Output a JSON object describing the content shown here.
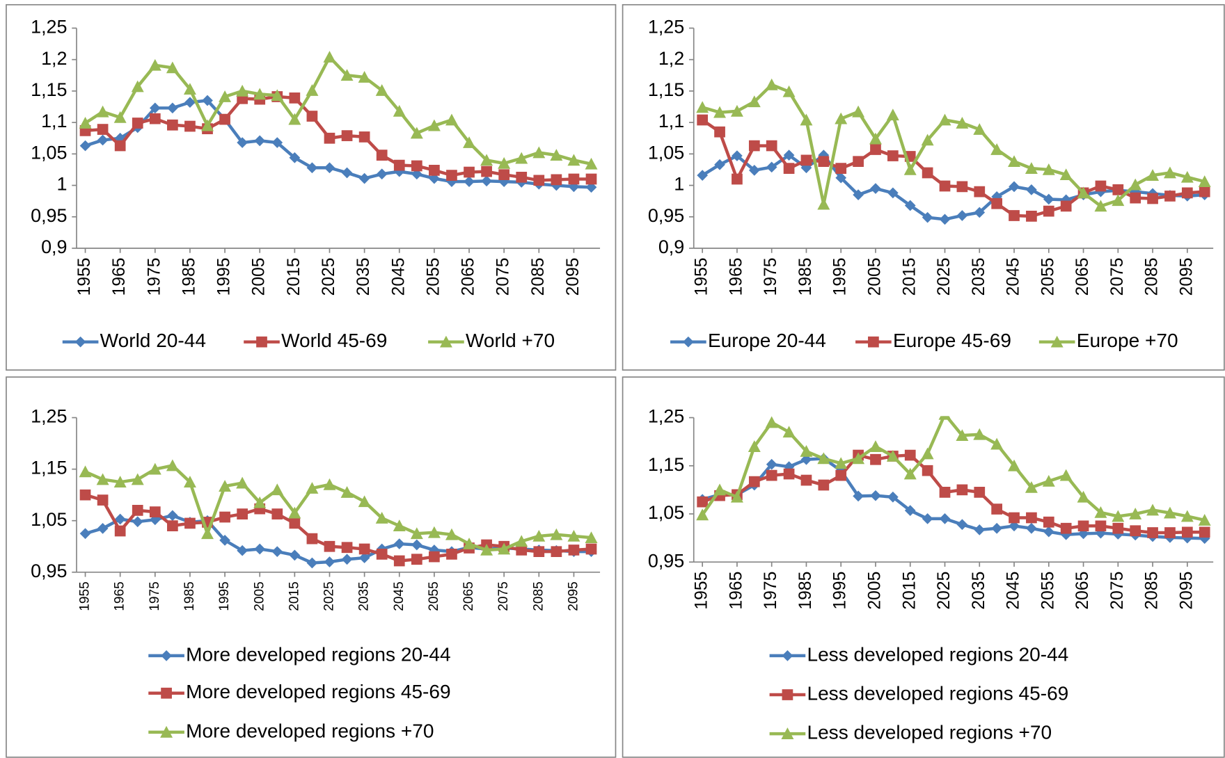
{
  "chart_data": [
    {
      "type": "line",
      "x": [
        1955,
        1960,
        1965,
        1970,
        1975,
        1980,
        1985,
        1990,
        1995,
        2000,
        2005,
        2010,
        2015,
        2020,
        2025,
        2030,
        2035,
        2040,
        2045,
        2050,
        2055,
        2060,
        2065,
        2070,
        2075,
        2080,
        2085,
        2090,
        2095,
        2100
      ],
      "xlim": [
        1952.5,
        2102.5
      ],
      "xticks": [
        1955,
        1965,
        1975,
        1985,
        1995,
        2005,
        2015,
        2025,
        2035,
        2045,
        2055,
        2065,
        2075,
        2085,
        2095
      ],
      "ylim": [
        0.9,
        1.25
      ],
      "yticks": [
        {
          "value": 0.9,
          "label": "0,9"
        },
        {
          "value": 0.95,
          "label": "0,95"
        },
        1,
        {
          "value": 1.05,
          "label": "1,05"
        },
        {
          "value": 1.1,
          "label": "1,1"
        },
        {
          "value": 1.15,
          "label": "1,15"
        },
        {
          "value": 1.2,
          "label": "1,2"
        },
        {
          "value": 1.25,
          "label": "1,25"
        }
      ],
      "grid": false,
      "legend": "bottom",
      "series": [
        {
          "name": "World 20-44",
          "color": "#4a7ebb",
          "marker": "diamond",
          "values": [
            1.063,
            1.072,
            1.075,
            1.092,
            1.123,
            1.123,
            1.132,
            1.135,
            1.105,
            1.068,
            1.071,
            1.068,
            1.044,
            1.028,
            1.028,
            1.02,
            1.011,
            1.018,
            1.022,
            1.018,
            1.011,
            1.006,
            1.006,
            1.007,
            1.006,
            1.005,
            1.002,
            1.0,
            0.998,
            0.997
          ]
        },
        {
          "name": "World 45-69",
          "color": "#be4b48",
          "marker": "square",
          "values": [
            1.087,
            1.089,
            1.063,
            1.099,
            1.106,
            1.096,
            1.094,
            1.09,
            1.105,
            1.138,
            1.137,
            1.141,
            1.139,
            1.11,
            1.075,
            1.079,
            1.077,
            1.048,
            1.032,
            1.031,
            1.024,
            1.016,
            1.021,
            1.022,
            1.017,
            1.013,
            1.008,
            1.009,
            1.01,
            1.01
          ]
        },
        {
          "name": "World +70",
          "color": "#98b954",
          "marker": "triangle",
          "values": [
            1.099,
            1.117,
            1.108,
            1.157,
            1.191,
            1.187,
            1.153,
            1.095,
            1.141,
            1.15,
            1.145,
            1.143,
            1.105,
            1.151,
            1.204,
            1.175,
            1.172,
            1.151,
            1.118,
            1.083,
            1.095,
            1.104,
            1.068,
            1.04,
            1.035,
            1.043,
            1.052,
            1.048,
            1.04,
            1.034
          ]
        }
      ]
    },
    {
      "type": "line",
      "x": [
        1955,
        1960,
        1965,
        1970,
        1975,
        1980,
        1985,
        1990,
        1995,
        2000,
        2005,
        2010,
        2015,
        2020,
        2025,
        2030,
        2035,
        2040,
        2045,
        2050,
        2055,
        2060,
        2065,
        2070,
        2075,
        2080,
        2085,
        2090,
        2095,
        2100
      ],
      "xlim": [
        1952.5,
        2102.5
      ],
      "xticks": [
        1955,
        1965,
        1975,
        1985,
        1995,
        2005,
        2015,
        2025,
        2035,
        2045,
        2055,
        2065,
        2075,
        2085,
        2095
      ],
      "ylim": [
        0.9,
        1.25
      ],
      "yticks": [
        {
          "value": 0.9,
          "label": "0,9"
        },
        {
          "value": 0.95,
          "label": "0,95"
        },
        1,
        {
          "value": 1.05,
          "label": "1,05"
        },
        {
          "value": 1.1,
          "label": "1,1"
        },
        {
          "value": 1.15,
          "label": "1,15"
        },
        {
          "value": 1.2,
          "label": "1,2"
        },
        {
          "value": 1.25,
          "label": "1,25"
        }
      ],
      "grid": false,
      "legend": "bottom",
      "series": [
        {
          "name": "Europe 20-44",
          "color": "#4a7ebb",
          "marker": "diamond",
          "values": [
            1.016,
            1.033,
            1.047,
            1.024,
            1.029,
            1.048,
            1.028,
            1.048,
            1.012,
            0.985,
            0.995,
            0.988,
            0.968,
            0.949,
            0.946,
            0.952,
            0.957,
            0.982,
            0.998,
            0.993,
            0.978,
            0.977,
            0.985,
            0.99,
            0.992,
            0.99,
            0.987,
            0.984,
            0.983,
            0.985
          ]
        },
        {
          "name": "Europe 45-69",
          "color": "#be4b48",
          "marker": "square",
          "values": [
            1.104,
            1.085,
            1.01,
            1.063,
            1.063,
            1.027,
            1.04,
            1.038,
            1.027,
            1.038,
            1.057,
            1.047,
            1.046,
            1.02,
            0.999,
            0.998,
            0.99,
            0.971,
            0.952,
            0.951,
            0.959,
            0.967,
            0.988,
            0.999,
            0.993,
            0.98,
            0.979,
            0.983,
            0.988,
            0.99
          ]
        },
        {
          "name": "Europe +70",
          "color": "#98b954",
          "marker": "triangle",
          "values": [
            1.124,
            1.116,
            1.118,
            1.133,
            1.16,
            1.149,
            1.104,
            0.97,
            1.106,
            1.117,
            1.074,
            1.112,
            1.025,
            1.072,
            1.104,
            1.099,
            1.089,
            1.057,
            1.038,
            1.027,
            1.025,
            1.017,
            0.988,
            0.967,
            0.976,
            1.001,
            1.016,
            1.02,
            1.013,
            1.006
          ]
        }
      ]
    },
    {
      "type": "line",
      "x": [
        1955,
        1960,
        1965,
        1970,
        1975,
        1980,
        1985,
        1990,
        1995,
        2000,
        2005,
        2010,
        2015,
        2020,
        2025,
        2030,
        2035,
        2040,
        2045,
        2050,
        2055,
        2060,
        2065,
        2070,
        2075,
        2080,
        2085,
        2090,
        2095,
        2100
      ],
      "xlim": [
        1952.5,
        2102.5
      ],
      "xticks": [
        1955,
        1965,
        1975,
        1985,
        1995,
        2005,
        2015,
        2025,
        2035,
        2045,
        2055,
        2065,
        2075,
        2085,
        2095
      ],
      "ylim": [
        0.95,
        1.25
      ],
      "yticks": [
        {
          "value": 0.95,
          "label": "0,95"
        },
        {
          "value": 1.05,
          "label": "1,05"
        },
        {
          "value": 1.15,
          "label": "1,15"
        },
        {
          "value": 1.25,
          "label": "1,25"
        }
      ],
      "grid": false,
      "legend": "bottom",
      "series": [
        {
          "name": "More developed regions 20-44",
          "color": "#4a7ebb",
          "marker": "diamond",
          "values": [
            1.025,
            1.035,
            1.053,
            1.048,
            1.052,
            1.06,
            1.047,
            1.05,
            1.012,
            0.992,
            0.995,
            0.99,
            0.983,
            0.968,
            0.97,
            0.975,
            0.978,
            0.995,
            1.005,
            1.003,
            0.993,
            0.99,
            0.998,
            0.995,
            0.997,
            0.995,
            0.993,
            0.992,
            0.99,
            0.99
          ]
        },
        {
          "name": "More developed regions 45-69",
          "color": "#be4b48",
          "marker": "square",
          "values": [
            1.1,
            1.09,
            1.03,
            1.07,
            1.067,
            1.04,
            1.045,
            1.047,
            1.057,
            1.063,
            1.073,
            1.063,
            1.045,
            1.015,
            1.0,
            0.998,
            0.995,
            0.985,
            0.972,
            0.975,
            0.98,
            0.985,
            0.997,
            1.003,
            1.0,
            0.993,
            0.99,
            0.99,
            0.993,
            0.995
          ]
        },
        {
          "name": "More developed regions +70",
          "color": "#98b954",
          "marker": "triangle",
          "values": [
            1.145,
            1.13,
            1.125,
            1.13,
            1.15,
            1.157,
            1.125,
            1.025,
            1.117,
            1.123,
            1.085,
            1.11,
            1.065,
            1.113,
            1.12,
            1.105,
            1.087,
            1.055,
            1.04,
            1.025,
            1.027,
            1.023,
            1.005,
            0.993,
            0.995,
            1.01,
            1.02,
            1.023,
            1.02,
            1.017
          ]
        }
      ]
    },
    {
      "type": "line",
      "x": [
        1955,
        1960,
        1965,
        1970,
        1975,
        1980,
        1985,
        1990,
        1995,
        2000,
        2005,
        2010,
        2015,
        2020,
        2025,
        2030,
        2035,
        2040,
        2045,
        2050,
        2055,
        2060,
        2065,
        2070,
        2075,
        2080,
        2085,
        2090,
        2095,
        2100
      ],
      "xlim": [
        1952.5,
        2102.5
      ],
      "xticks": [
        1955,
        1965,
        1975,
        1985,
        1995,
        2005,
        2015,
        2025,
        2035,
        2045,
        2055,
        2065,
        2075,
        2085,
        2095
      ],
      "ylim": [
        0.95,
        1.25
      ],
      "yticks": [
        {
          "value": 0.95,
          "label": "0,95"
        },
        {
          "value": 1.05,
          "label": "1,05"
        },
        {
          "value": 1.15,
          "label": "1,15"
        },
        {
          "value": 1.25,
          "label": "1,25"
        }
      ],
      "grid": false,
      "legend": "bottom",
      "series": [
        {
          "name": "Less developed regions 20-44",
          "color": "#4a7ebb",
          "marker": "diamond",
          "values": [
            1.08,
            1.09,
            1.09,
            1.11,
            1.153,
            1.148,
            1.163,
            1.165,
            1.14,
            1.087,
            1.088,
            1.085,
            1.057,
            1.04,
            1.04,
            1.028,
            1.017,
            1.02,
            1.025,
            1.02,
            1.013,
            1.007,
            1.009,
            1.01,
            1.008,
            1.006,
            1.003,
            1.001,
            1.0,
            0.999
          ]
        },
        {
          "name": "Less developed regions 45-69",
          "color": "#be4b48",
          "marker": "square",
          "values": [
            1.075,
            1.088,
            1.09,
            1.117,
            1.13,
            1.133,
            1.12,
            1.11,
            1.13,
            1.172,
            1.163,
            1.17,
            1.172,
            1.14,
            1.095,
            1.1,
            1.095,
            1.06,
            1.042,
            1.042,
            1.033,
            1.02,
            1.025,
            1.025,
            1.02,
            1.015,
            1.011,
            1.011,
            1.012,
            1.012
          ]
        },
        {
          "name": "Less developed regions +70",
          "color": "#98b954",
          "marker": "triangle",
          "values": [
            1.048,
            1.1,
            1.085,
            1.19,
            1.24,
            1.22,
            1.18,
            1.165,
            1.155,
            1.165,
            1.19,
            1.17,
            1.133,
            1.175,
            1.257,
            1.213,
            1.215,
            1.195,
            1.15,
            1.105,
            1.118,
            1.13,
            1.085,
            1.053,
            1.045,
            1.05,
            1.058,
            1.052,
            1.045,
            1.037
          ]
        }
      ]
    }
  ]
}
